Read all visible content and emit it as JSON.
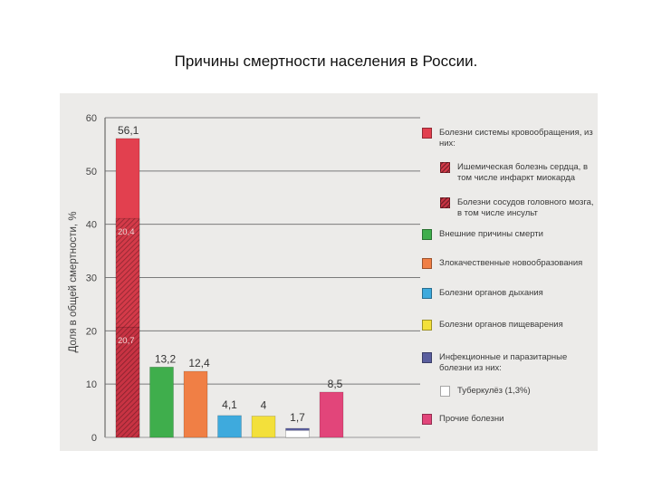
{
  "slide": {
    "title": "Причины смертности населения в России."
  },
  "chart_data": {
    "type": "bar",
    "title": "",
    "xlabel": "",
    "ylabel": "Доля в общей смертности, %",
    "ylim": [
      0,
      60
    ],
    "yticks": [
      0,
      10,
      20,
      30,
      40,
      50,
      60
    ],
    "grid": true,
    "legend_position": "right",
    "bars": [
      {
        "category": "Болезни системы кровообращения, из них:",
        "value": 56.1,
        "label": "56,1",
        "color": "#e2404f",
        "segments": [
          {
            "name": "Болезни сосудов головного мозга, в том числе инсульт",
            "value": 20.7,
            "label": "20,7",
            "color": "#c83343",
            "hatch": true
          },
          {
            "name": "Ишемическая болезнь сердца, в том числе инфаркт миокарда",
            "value": 20.4,
            "label": "20,4",
            "color": "#d43a49",
            "hatch": true
          }
        ]
      },
      {
        "category": "Внешние причины смерти",
        "value": 13.2,
        "label": "13,2",
        "color": "#3fae4c"
      },
      {
        "category": "Злокачественные новообразования",
        "value": 12.4,
        "label": "12,4",
        "color": "#f07f45"
      },
      {
        "category": "Болезни органов дыхания",
        "value": 4.1,
        "label": "4,1",
        "color": "#3eaadd"
      },
      {
        "category": "Болезни органов пищеварения",
        "value": 4,
        "label": "4",
        "color": "#f3e03b"
      },
      {
        "category": "Инфекционные и паразитарные болезни из них:",
        "value": 1.7,
        "label": "1,7",
        "color": "#5a5e9e",
        "segments": [
          {
            "name": "Туберкулёз (1,3%)",
            "value": 1.3,
            "label": "",
            "color": "#ffffff",
            "hatch": false
          }
        ]
      },
      {
        "category": "Прочие болезни",
        "value": 8.5,
        "label": "8,5",
        "color": "#e2457a"
      }
    ]
  },
  "legend": [
    {
      "text": "Болезни системы кровообращения, из них:",
      "color": "#e2404f",
      "hatch": false,
      "indent": false
    },
    {
      "text": "Ишемическая болезнь сердца, в том числе инфаркт миокарда",
      "color": "#d43a49",
      "hatch": true,
      "indent": true
    },
    {
      "text": "Болезни сосудов головного мозга, в том числе инсульт",
      "color": "#c83343",
      "hatch": true,
      "indent": true
    },
    {
      "text": "Внешние причины смерти",
      "color": "#3fae4c",
      "hatch": false,
      "indent": false
    },
    {
      "text": "Злокачественные новообразования",
      "color": "#f07f45",
      "hatch": false,
      "indent": false
    },
    {
      "text": "Болезни органов дыхания",
      "color": "#3eaadd",
      "hatch": false,
      "indent": false
    },
    {
      "text": "Болезни органов пищеварения",
      "color": "#f3e03b",
      "hatch": false,
      "indent": false
    },
    {
      "text": "Инфекционные и паразитарные болезни из них:",
      "color": "#5a5e9e",
      "hatch": false,
      "indent": false
    },
    {
      "text": "Туберкулёз (1,3%)",
      "color": "#ffffff",
      "hatch": false,
      "indent": true
    },
    {
      "text": "Прочие болезни",
      "color": "#e2457a",
      "hatch": false,
      "indent": false
    }
  ]
}
